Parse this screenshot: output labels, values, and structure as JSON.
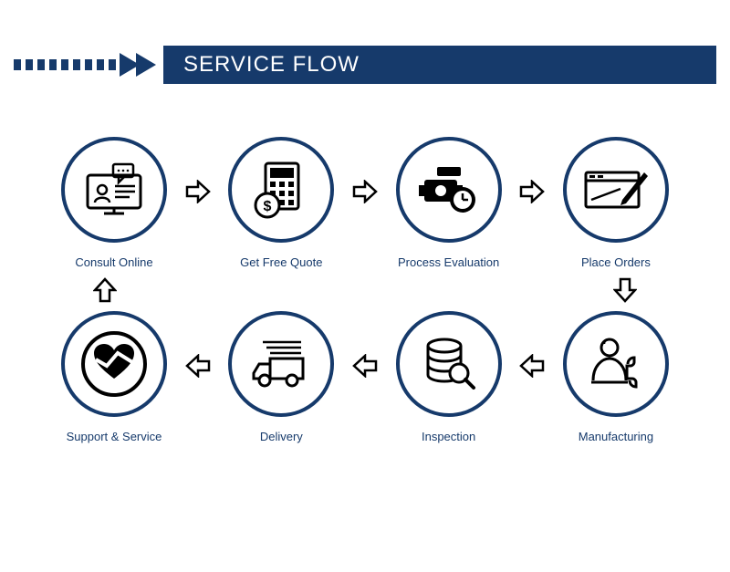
{
  "colors": {
    "brand": "#163a6b",
    "white": "#ffffff",
    "label": "#163a6b",
    "icon": "#000000",
    "circle_border": "#163a6b",
    "background": "#ffffff"
  },
  "header": {
    "title": "SERVICE FLOW",
    "title_color": "#ffffff",
    "bar_color": "#163a6b",
    "dash_count": 9
  },
  "layout": {
    "circle_diameter": 116,
    "circle_border_width": 4,
    "label_fontsize": 13,
    "title_fontsize": 24
  },
  "steps": {
    "top": [
      {
        "id": "consult",
        "label": "Consult Online",
        "icon": "consult-icon"
      },
      {
        "id": "quote",
        "label": "Get Free Quote",
        "icon": "quote-icon"
      },
      {
        "id": "evaluation",
        "label": "Process Evaluation",
        "icon": "evaluation-icon"
      },
      {
        "id": "orders",
        "label": "Place Orders",
        "icon": "orders-icon"
      }
    ],
    "bottom": [
      {
        "id": "support",
        "label": "Support & Service",
        "icon": "support-icon"
      },
      {
        "id": "delivery",
        "label": "Delivery",
        "icon": "delivery-icon"
      },
      {
        "id": "inspection",
        "label": "Inspection",
        "icon": "inspection-icon"
      },
      {
        "id": "manufacturing",
        "label": "Manufacturing",
        "icon": "manufacturing-icon"
      }
    ]
  },
  "arrows": {
    "top_row_dir": "right",
    "bottom_row_dir": "left",
    "right_side_dir": "down",
    "left_side_dir": "up"
  }
}
